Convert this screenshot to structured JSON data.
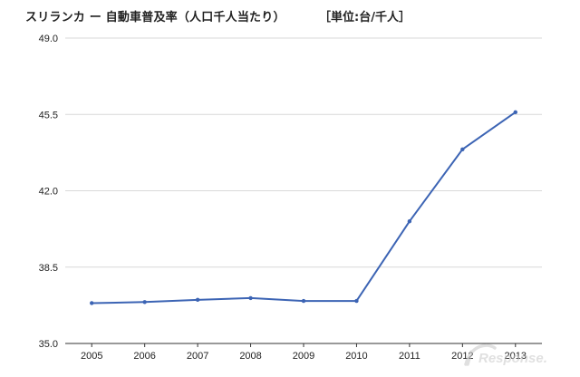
{
  "header": {
    "title": "スリランカ ー 自動車普及率（人口千人当たり）",
    "unit": "［単位:台/千人］"
  },
  "watermark": {
    "text": "Response."
  },
  "colors": {
    "line": "#3c64b4",
    "grid": "#d9d9d9",
    "axis": "#333333",
    "text": "#222222"
  },
  "chart_data": {
    "type": "line",
    "title": "スリランカ ー 自動車普及率（人口千人当たり）",
    "ylabel": "［単位:台/千人］",
    "x": [
      "2005",
      "2006",
      "2007",
      "2008",
      "2009",
      "2010",
      "2011",
      "2012",
      "2013"
    ],
    "series": [
      {
        "values": [
          36.85,
          36.9,
          37.0,
          37.08,
          36.95,
          36.95,
          40.6,
          43.9,
          45.6
        ]
      }
    ],
    "yticks": [
      "49.0",
      "45.5",
      "42.0",
      "38.5",
      "35.0"
    ],
    "ylim": [
      35.0,
      49.0
    ],
    "grid": true,
    "legend": "none"
  }
}
